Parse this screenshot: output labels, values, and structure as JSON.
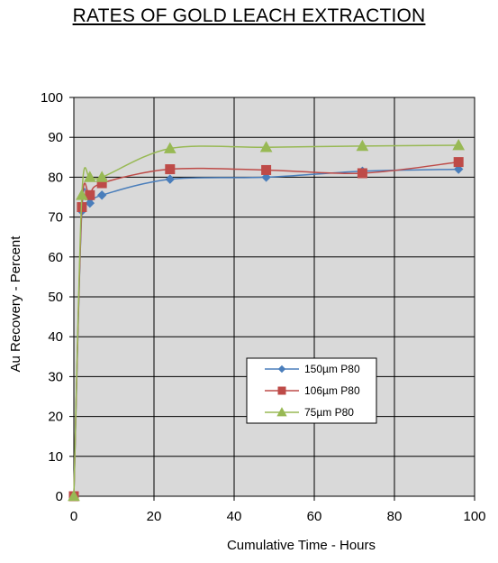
{
  "chart_data": {
    "type": "line",
    "title": "RATES OF GOLD LEACH EXTRACTION",
    "xlabel": "Cumulative Time - Hours",
    "ylabel": "Au Recovery - Percent",
    "xlim": [
      0,
      100
    ],
    "ylim": [
      0,
      100
    ],
    "xticks": [
      0,
      20,
      40,
      60,
      80,
      100
    ],
    "yticks": [
      0,
      10,
      20,
      30,
      40,
      50,
      60,
      70,
      80,
      90,
      100
    ],
    "grid": true,
    "legend_position": "lower-right",
    "plot_background": "#d9d9d9",
    "series": [
      {
        "name": "150µm P80",
        "color": "#4a7ebb",
        "marker": "diamond",
        "x": [
          0,
          2,
          4,
          7,
          24,
          48,
          72,
          96
        ],
        "y": [
          0,
          71.5,
          73.5,
          75.5,
          79.5,
          80,
          81.5,
          82
        ]
      },
      {
        "name": "106µm P80",
        "color": "#be4b48",
        "marker": "square",
        "x": [
          0,
          2,
          4,
          7,
          24,
          48,
          72,
          96
        ],
        "y": [
          0,
          72.5,
          75.5,
          78.5,
          82,
          81.8,
          81,
          83.8
        ]
      },
      {
        "name": "75µm P80",
        "color": "#98b954",
        "marker": "triangle",
        "x": [
          0,
          2,
          4,
          7,
          24,
          48,
          72,
          96
        ],
        "y": [
          0,
          75.5,
          80,
          80,
          87.2,
          87.5,
          87.8,
          88
        ]
      }
    ]
  }
}
